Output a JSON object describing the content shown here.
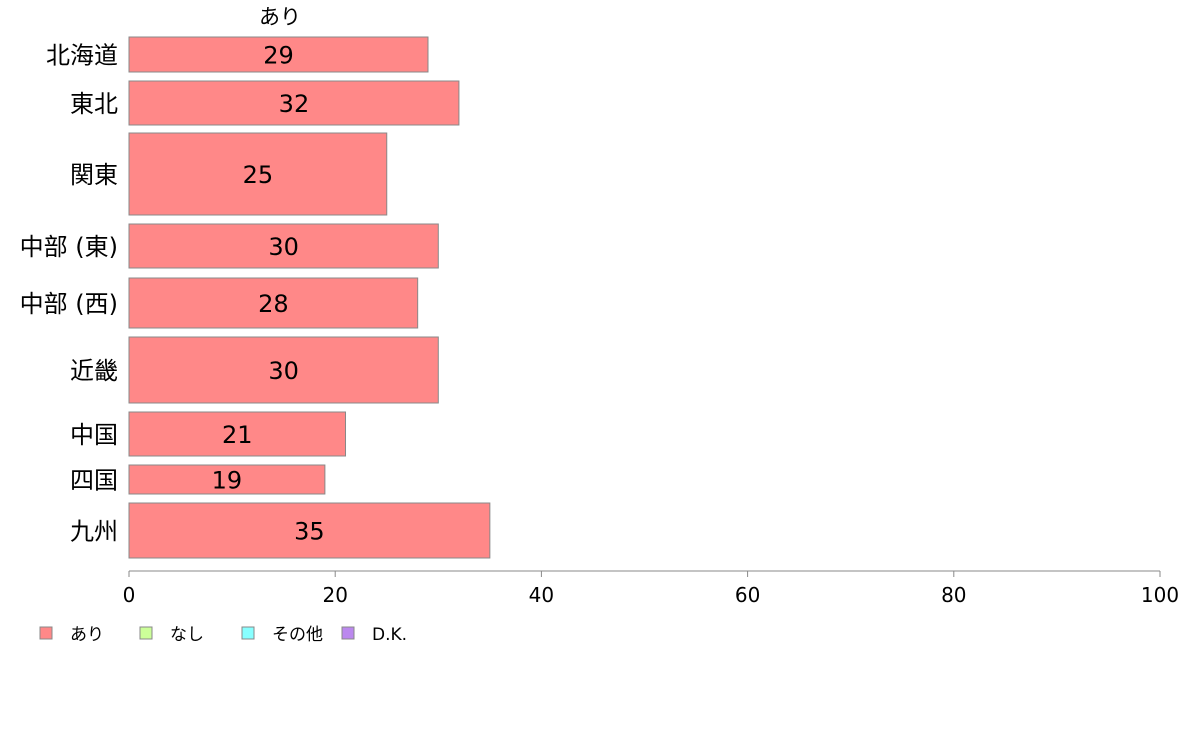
{
  "chart_data": {
    "type": "bar",
    "orientation": "horizontal",
    "column_title": "あり",
    "categories": [
      "北海道",
      "東北",
      "関東",
      "中部 (東)",
      "中部 (西)",
      "近畿",
      "中国",
      "四国",
      "九州"
    ],
    "series": [
      {
        "name": "あり",
        "values": [
          29,
          32,
          25,
          30,
          28,
          30,
          21,
          19,
          35
        ],
        "color": "#ff8888"
      }
    ],
    "value_labels": [
      "29",
      "32",
      "25",
      "30",
      "28",
      "30",
      "21",
      "19",
      "35"
    ],
    "xlim": [
      0,
      100
    ],
    "xticks": [
      0,
      20,
      40,
      60,
      80,
      100
    ],
    "xtick_labels": [
      "0",
      "20",
      "40",
      "60",
      "80",
      "100"
    ],
    "grid": false,
    "legend": {
      "position": "bottom-left",
      "entries": [
        {
          "label": "あり",
          "color": "#ff8888"
        },
        {
          "label": "なし",
          "color": "#ccff99"
        },
        {
          "label": "その他",
          "color": "#88ffff"
        },
        {
          "label": "D.K.",
          "color": "#bb88ee"
        }
      ]
    }
  }
}
